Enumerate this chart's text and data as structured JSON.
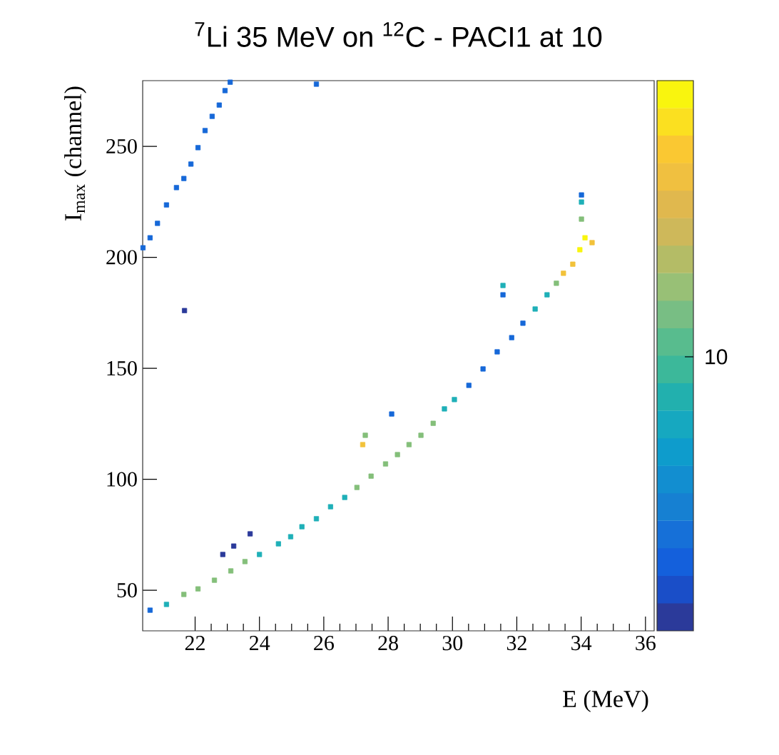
{
  "chart_data": {
    "type": "scatter",
    "title": "$^{7}$Li 35 MeV on $^{12}$C - PACI1 at 10",
    "xlabel": "E (MeV)",
    "ylabel": "I$_{max}$ (channel)",
    "annotations": [
      "10"
    ],
    "xlim": [
      20.37,
      36.27
    ],
    "ylim": [
      31.7,
      279.6
    ],
    "xticks": [
      22,
      24,
      26,
      28,
      30,
      32,
      34,
      36
    ],
    "yticks": [
      50,
      100,
      150,
      200,
      250
    ],
    "marker": "square",
    "grid": false,
    "series": [
      {
        "color": "#2b3a9a",
        "x": [
          21.67,
          22.86,
          23.2,
          23.71
        ],
        "values": [
          176.0,
          66.1,
          69.9,
          75.4
        ]
      },
      {
        "color": "#1668d8",
        "x": [
          20.6,
          30.51,
          30.95,
          31.39,
          31.84,
          32.19,
          34.01,
          20.38,
          20.6,
          20.83,
          21.11,
          21.42,
          21.65,
          21.87,
          22.09,
          22.31,
          22.53,
          22.75,
          22.93,
          23.09,
          25.77,
          28.11,
          31.57
        ],
        "values": [
          41.0,
          142.3,
          149.7,
          157.4,
          163.8,
          170.3,
          228.1,
          204.3,
          208.8,
          215.3,
          223.6,
          231.4,
          235.5,
          242.0,
          249.4,
          257.1,
          263.5,
          268.6,
          275.1,
          278.9,
          278.0,
          129.4,
          183.1
        ]
      },
      {
        "color": "#1fb0b8",
        "x": [
          21.11,
          24.0,
          24.59,
          24.97,
          25.32,
          25.77,
          26.21,
          26.65,
          29.75,
          30.06,
          32.57,
          32.94,
          34.01,
          31.57
        ],
        "values": [
          43.6,
          66.1,
          70.9,
          74.1,
          78.6,
          82.2,
          87.6,
          91.8,
          131.7,
          135.9,
          176.7,
          183.1,
          224.9,
          187.3
        ]
      },
      {
        "color": "#84bf7a",
        "x": [
          21.65,
          22.09,
          22.6,
          23.11,
          23.55,
          27.03,
          27.47,
          27.92,
          28.29,
          28.65,
          29.02,
          29.4,
          33.23,
          34.01,
          27.29
        ],
        "values": [
          48.1,
          50.6,
          54.5,
          58.7,
          62.9,
          96.3,
          101.4,
          106.9,
          111.1,
          115.6,
          119.8,
          125.2,
          188.3,
          217.2,
          119.8
        ]
      },
      {
        "color": "#f2c23a",
        "x": [
          33.45,
          33.74,
          34.34,
          27.21
        ],
        "values": [
          192.8,
          196.9,
          206.6,
          115.6
        ]
      },
      {
        "color": "#f9f50e",
        "x": [
          33.96,
          34.12
        ],
        "values": [
          203.4,
          208.8
        ]
      }
    ]
  }
}
